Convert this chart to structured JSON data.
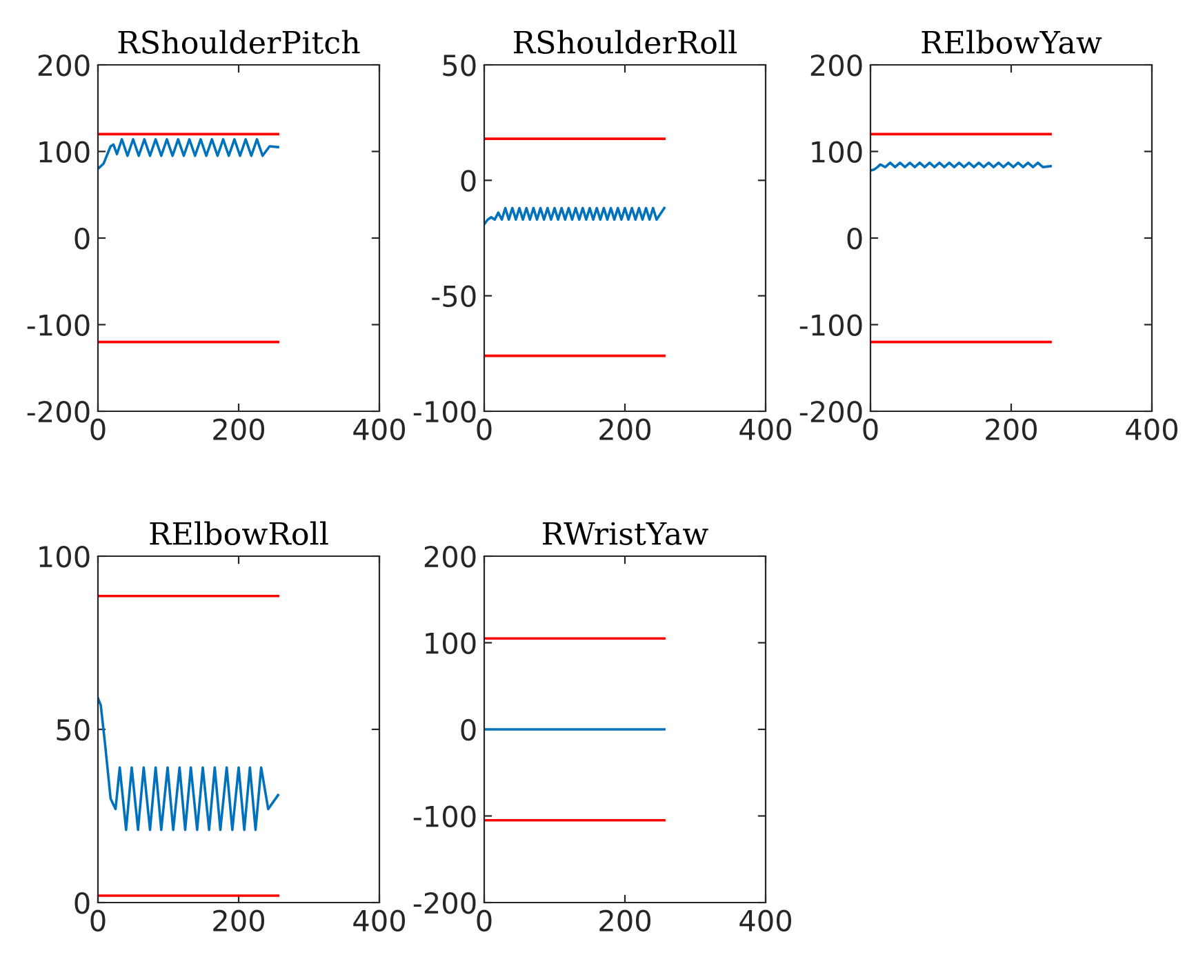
{
  "chart_data": [
    {
      "type": "line",
      "title": "RShoulderPitch",
      "xlim": [
        0,
        400
      ],
      "xticks": [
        0,
        200,
        400
      ],
      "ylim": [
        -200,
        200
      ],
      "yticks": [
        -200,
        -100,
        0,
        100,
        200
      ],
      "grid": false,
      "series": [
        {
          "color": "#0072bd",
          "x": [
            0,
            8,
            18,
            22,
            27,
            34,
            42,
            50,
            58,
            66,
            74,
            82,
            90,
            98,
            106,
            114,
            122,
            130,
            138,
            146,
            154,
            162,
            170,
            178,
            186,
            194,
            202,
            210,
            218,
            226,
            234,
            244,
            256
          ],
          "values": [
            80,
            86,
            106,
            108,
            97,
            114,
            95,
            114,
            95,
            114,
            95,
            114,
            95,
            114,
            95,
            114,
            95,
            114,
            95,
            114,
            95,
            114,
            95,
            114,
            95,
            114,
            95,
            114,
            95,
            114,
            95,
            106,
            105
          ]
        },
        {
          "color": "#ff0000",
          "x": [
            0,
            256
          ],
          "values": [
            120,
            120
          ]
        },
        {
          "color": "#ff0000",
          "x": [
            0,
            256
          ],
          "values": [
            -120,
            -120
          ]
        }
      ]
    },
    {
      "type": "line",
      "title": "RShoulderRoll",
      "xlim": [
        0,
        400
      ],
      "xticks": [
        0,
        200,
        400
      ],
      "ylim": [
        -100,
        50
      ],
      "yticks": [
        -100,
        -50,
        0,
        50
      ],
      "grid": false,
      "series": [
        {
          "color": "#0072bd",
          "x": [
            0,
            5,
            10,
            15,
            20,
            25,
            30,
            35,
            40,
            45,
            50,
            55,
            60,
            65,
            70,
            75,
            80,
            85,
            90,
            95,
            100,
            105,
            110,
            115,
            120,
            125,
            130,
            135,
            140,
            145,
            150,
            155,
            160,
            165,
            170,
            175,
            180,
            185,
            190,
            195,
            200,
            205,
            210,
            215,
            220,
            225,
            230,
            235,
            240,
            245,
            256
          ],
          "values": [
            -19,
            -17,
            -16,
            -17,
            -14,
            -17,
            -12,
            -17,
            -12,
            -17,
            -12,
            -17,
            -12,
            -17,
            -12,
            -17,
            -12,
            -17,
            -12,
            -17,
            -12,
            -17,
            -12,
            -17,
            -12,
            -17,
            -12,
            -17,
            -12,
            -17,
            -12,
            -17,
            -12,
            -17,
            -12,
            -17,
            -12,
            -17,
            -12,
            -17,
            -12,
            -17,
            -12,
            -17,
            -12,
            -17,
            -12,
            -17,
            -12,
            -17,
            -12
          ]
        },
        {
          "color": "#ff0000",
          "x": [
            0,
            256
          ],
          "values": [
            18,
            18
          ]
        },
        {
          "color": "#ff0000",
          "x": [
            0,
            256
          ],
          "values": [
            -76,
            -76
          ]
        }
      ]
    },
    {
      "type": "line",
      "title": "RElbowYaw",
      "xlim": [
        0,
        400
      ],
      "xticks": [
        0,
        200,
        400
      ],
      "ylim": [
        -200,
        200
      ],
      "yticks": [
        -200,
        -100,
        0,
        100,
        200
      ],
      "grid": false,
      "series": [
        {
          "color": "#0072bd",
          "x": [
            0,
            5,
            10,
            14,
            21,
            28,
            35,
            42,
            49,
            56,
            63,
            70,
            77,
            84,
            91,
            98,
            105,
            112,
            119,
            126,
            133,
            140,
            147,
            154,
            161,
            168,
            175,
            182,
            189,
            196,
            203,
            210,
            217,
            224,
            231,
            238,
            245,
            256
          ],
          "values": [
            78,
            79,
            82,
            85,
            82,
            87,
            82,
            87,
            82,
            87,
            82,
            87,
            82,
            87,
            82,
            87,
            82,
            87,
            82,
            87,
            82,
            87,
            82,
            87,
            82,
            87,
            82,
            87,
            82,
            87,
            82,
            87,
            82,
            87,
            82,
            87,
            82,
            83
          ]
        },
        {
          "color": "#ff0000",
          "x": [
            0,
            256
          ],
          "values": [
            120,
            120
          ]
        },
        {
          "color": "#ff0000",
          "x": [
            0,
            256
          ],
          "values": [
            -120,
            -120
          ]
        }
      ]
    },
    {
      "type": "line",
      "title": "RElbowRoll",
      "xlim": [
        0,
        400
      ],
      "xticks": [
        0,
        200,
        400
      ],
      "ylim": [
        0,
        100
      ],
      "yticks": [
        0,
        50,
        100
      ],
      "grid": false,
      "series": [
        {
          "color": "#0072bd",
          "x": [
            0,
            4,
            10,
            18,
            25,
            31,
            40,
            48,
            57,
            65,
            74,
            82,
            90,
            99,
            107,
            116,
            124,
            132,
            141,
            149,
            158,
            166,
            174,
            183,
            191,
            200,
            208,
            216,
            224,
            232,
            242,
            256
          ],
          "values": [
            59,
            57,
            46,
            30,
            27,
            39,
            21,
            39,
            21,
            39,
            21,
            39,
            21,
            39,
            21,
            39,
            21,
            39,
            21,
            39,
            21,
            39,
            21,
            39,
            21,
            39,
            21,
            39,
            21,
            39,
            27,
            31
          ]
        },
        {
          "color": "#ff0000",
          "x": [
            0,
            256
          ],
          "values": [
            88.5,
            88.5
          ]
        },
        {
          "color": "#ff0000",
          "x": [
            0,
            256
          ],
          "values": [
            2,
            2
          ]
        }
      ]
    },
    {
      "type": "line",
      "title": "RWristYaw",
      "xlim": [
        0,
        400
      ],
      "xticks": [
        0,
        200,
        400
      ],
      "ylim": [
        -200,
        200
      ],
      "yticks": [
        -200,
        -100,
        0,
        100,
        200
      ],
      "grid": false,
      "series": [
        {
          "color": "#0072bd",
          "x": [
            0,
            256
          ],
          "values": [
            0,
            0
          ]
        },
        {
          "color": "#ff0000",
          "x": [
            0,
            256
          ],
          "values": [
            105,
            105
          ]
        },
        {
          "color": "#ff0000",
          "x": [
            0,
            256
          ],
          "values": [
            -105,
            -105
          ]
        }
      ]
    }
  ]
}
